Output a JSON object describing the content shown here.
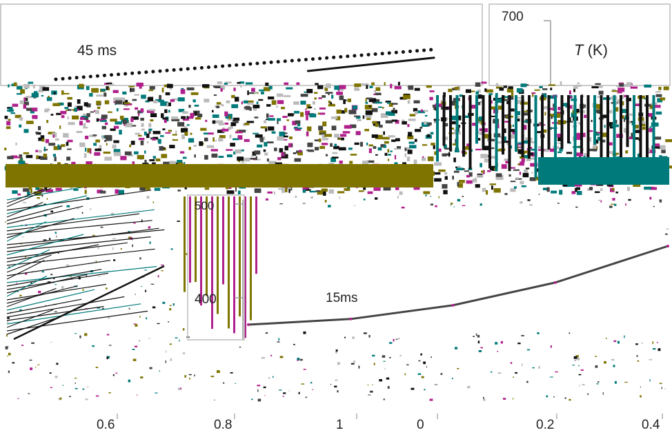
{
  "chart_data": [
    {
      "type": "line",
      "panel": "left",
      "xlabel": "",
      "ylabel": "",
      "x_ticks": [
        "0.6",
        "0.8",
        "1"
      ],
      "xlim": [
        0.5,
        1.05
      ],
      "annotations": [
        "45 ms"
      ],
      "series": [
        {
          "style": "dotted",
          "x": [
            0.55,
            1.0
          ],
          "y": [
            0.0,
            0.18
          ]
        },
        {
          "style": "solid",
          "x": [
            0.85,
            1.0
          ],
          "y": [
            0.05,
            0.13
          ]
        }
      ]
    },
    {
      "type": "line",
      "panel": "right",
      "xlabel": "",
      "ylabel": "T (K)",
      "ylabel_var": "T",
      "ylabel_unit": " (K)",
      "x_ticks": [
        "0",
        "0.2",
        "0.4"
      ],
      "y_ticks": [
        "400",
        "500",
        "700"
      ],
      "xlim": [
        0,
        0.41
      ],
      "annotations": [
        "15ms"
      ],
      "series": [
        {
          "style": "solid",
          "x": [
            0.0,
            0.1,
            0.2,
            0.3,
            0.41
          ],
          "y": [
            423,
            428,
            440,
            460,
            492
          ]
        }
      ]
    }
  ],
  "colors": {
    "olive": "#7f7400",
    "teal": "#007a7a",
    "magenta": "#b0208c",
    "ink": "#111111",
    "tick": "#999999"
  }
}
